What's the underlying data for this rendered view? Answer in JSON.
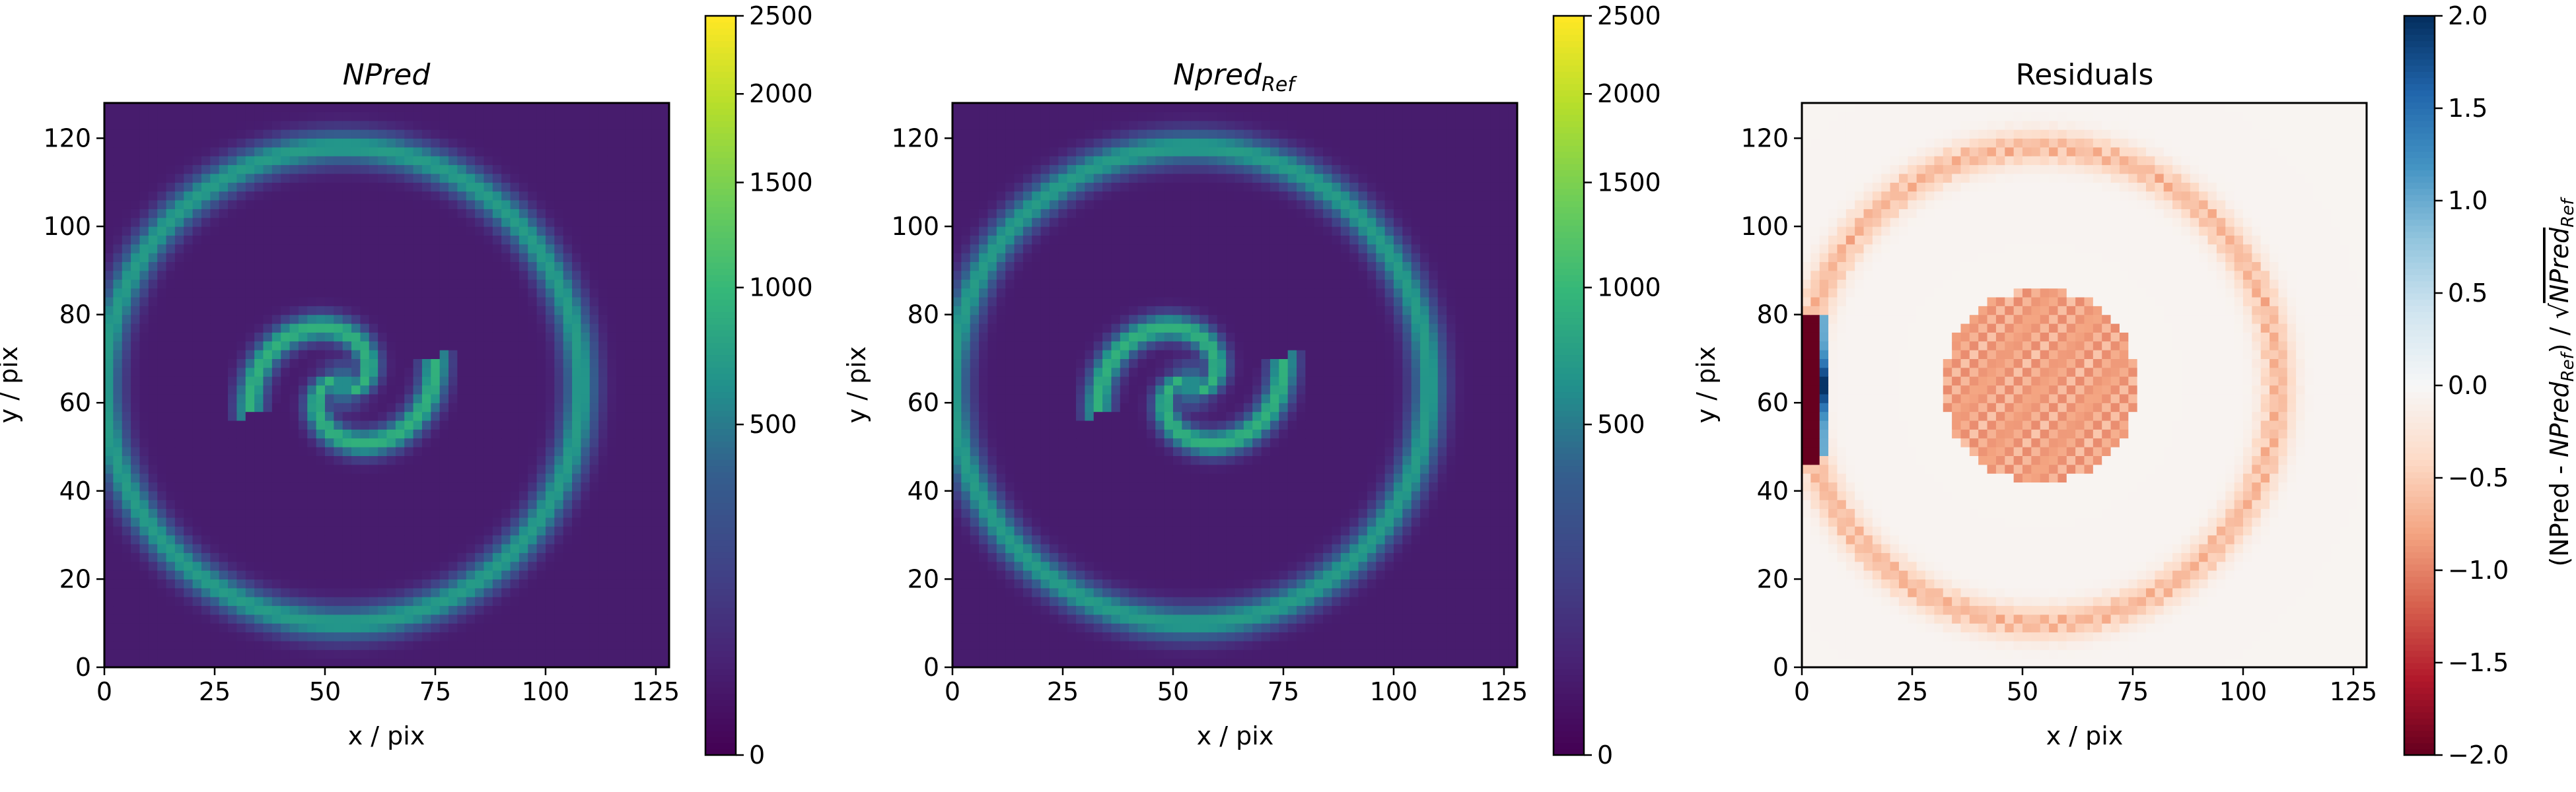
{
  "chart_data": [
    {
      "type": "heatmap",
      "title": "NPred",
      "xlabel": "x / pix",
      "ylabel": "y / pix",
      "xlim": [
        0,
        128
      ],
      "ylim": [
        0,
        128
      ],
      "xticks": [
        0,
        25,
        50,
        75,
        100,
        125
      ],
      "yticks": [
        0,
        20,
        40,
        60,
        80,
        100,
        120
      ],
      "grid": false,
      "colormap": "viridis",
      "colorbar": {
        "range": [
          0,
          2500
        ],
        "scale": "power",
        "ticks": [
          0,
          500,
          1000,
          1500,
          2000,
          2500
        ],
        "label": ""
      },
      "features": {
        "ring": {
          "center": [
            54,
            64
          ],
          "radius": 54,
          "value": 700
        },
        "spiral": {
          "center": [
            54,
            64
          ],
          "arms": 2,
          "outer_radius": 22,
          "value": 900,
          "peak": 1100
        },
        "background": 25
      }
    },
    {
      "type": "heatmap",
      "title": "Npred",
      "title_subscript": "Ref",
      "xlabel": "x / pix",
      "ylabel": "y / pix",
      "xlim": [
        0,
        128
      ],
      "ylim": [
        0,
        128
      ],
      "xticks": [
        0,
        25,
        50,
        75,
        100,
        125
      ],
      "yticks": [
        0,
        20,
        40,
        60,
        80,
        100,
        120
      ],
      "grid": false,
      "colormap": "viridis",
      "colorbar": {
        "range": [
          0,
          2500
        ],
        "scale": "power",
        "ticks": [
          0,
          500,
          1000,
          1500,
          2000,
          2500
        ],
        "label": ""
      },
      "features": {
        "ring": {
          "center": [
            54,
            64
          ],
          "radius": 54,
          "value": 700
        },
        "spiral": {
          "center": [
            54,
            64
          ],
          "arms": 2,
          "outer_radius": 22,
          "value": 900,
          "peak": 1100
        },
        "background": 25
      }
    },
    {
      "type": "heatmap",
      "title": "Residuals",
      "xlabel": "x / pix",
      "ylabel": "y / pix",
      "xlim": [
        0,
        128
      ],
      "ylim": [
        0,
        128
      ],
      "xticks": [
        0,
        25,
        50,
        75,
        100,
        125
      ],
      "yticks": [
        0,
        20,
        40,
        60,
        80,
        100,
        120
      ],
      "grid": false,
      "colormap": "RdBu",
      "colorbar": {
        "range": [
          -2.0,
          2.0
        ],
        "ticks": [
          -2.0,
          -1.5,
          -1.0,
          -0.5,
          0.0,
          0.5,
          1.0,
          1.5,
          2.0
        ],
        "tick_labels": [
          "−2.0",
          "−1.5",
          "−1.0",
          "−0.5",
          "0.0",
          "0.5",
          "1.0",
          "1.5",
          "2.0"
        ],
        "label": "(NPred - NPred_Ref) / sqrt(NPred_Ref)"
      },
      "features": {
        "ring": {
          "center": [
            54,
            64
          ],
          "radius": 54,
          "value": -0.8
        },
        "spiral_disk": {
          "center": [
            54,
            64
          ],
          "radius": 22,
          "value": -0.9
        },
        "edge_strip": {
          "x": [
            0,
            4
          ],
          "y": [
            46,
            80
          ],
          "value": -2.0
        },
        "edge_blue": {
          "x": [
            4,
            7
          ],
          "y": [
            48,
            80
          ],
          "value": 1.0,
          "peak": 2.0
        },
        "background": -0.05
      }
    }
  ]
}
